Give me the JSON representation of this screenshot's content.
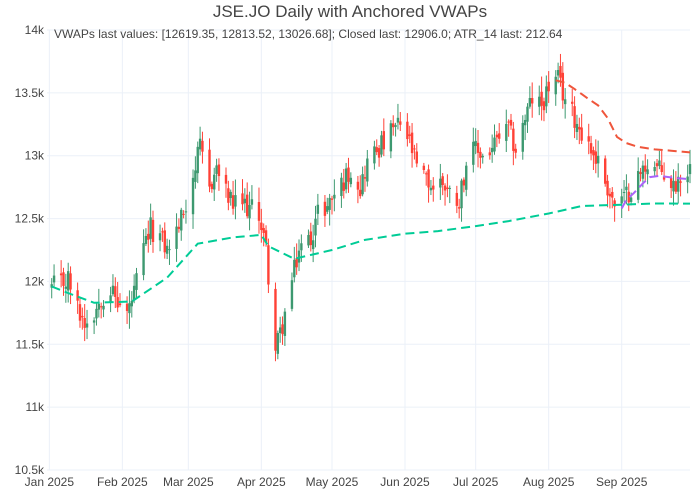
{
  "chart_data": {
    "type": "candlestick",
    "title": "JSE.JO Daily with Anchored VWAPs",
    "annotation": "VWAPs last values: [12619.35, 12813.52, 13026.68]; Closed last: 12906.0; ATR_14 last: 212.64",
    "xlabel": "",
    "ylabel": "",
    "x_range": [
      "2024-12-31",
      "2025-09-30"
    ],
    "ylim": [
      10500,
      14000
    ],
    "x_ticks": [
      {
        "date": "2025-01-01",
        "label": "Jan 2025"
      },
      {
        "date": "2025-02-01",
        "label": "Feb 2025"
      },
      {
        "date": "2025-03-01",
        "label": "Mar 2025"
      },
      {
        "date": "2025-04-01",
        "label": "Apr 2025"
      },
      {
        "date": "2025-05-01",
        "label": "May 2025"
      },
      {
        "date": "2025-06-01",
        "label": "Jun 2025"
      },
      {
        "date": "2025-07-01",
        "label": "Jul 2025"
      },
      {
        "date": "2025-08-01",
        "label": "Aug 2025"
      },
      {
        "date": "2025-09-01",
        "label": "Sep 2025"
      }
    ],
    "y_ticks": [
      {
        "value": 10500,
        "label": "10.5k"
      },
      {
        "value": 11000,
        "label": "11k"
      },
      {
        "value": 11500,
        "label": "11.5k"
      },
      {
        "value": 12000,
        "label": "12k"
      },
      {
        "value": 12500,
        "label": "12.5k"
      },
      {
        "value": 13000,
        "label": "13k"
      },
      {
        "value": 13500,
        "label": "13.5k"
      },
      {
        "value": 14000,
        "label": "14k"
      }
    ],
    "grid": true,
    "legend": "none",
    "colors": {
      "up": "#3d9970",
      "down": "#ff4136",
      "vwap1": "#00cc96",
      "vwap2": "#ef553b",
      "vwap3": "#ab63fa",
      "grid": "#ebf0f8"
    },
    "close_points": [
      [
        "2025-01-02",
        11950
      ],
      [
        "2025-01-06",
        11980
      ],
      [
        "2025-01-09",
        12020
      ],
      [
        "2025-01-13",
        11780
      ],
      [
        "2025-01-16",
        11680
      ],
      [
        "2025-01-20",
        11760
      ],
      [
        "2025-01-23",
        11880
      ],
      [
        "2025-01-27",
        11940
      ],
      [
        "2025-01-30",
        11830
      ],
      [
        "2025-02-03",
        11740
      ],
      [
        "2025-02-06",
        11900
      ],
      [
        "2025-02-10",
        12250
      ],
      [
        "2025-02-13",
        12420
      ],
      [
        "2025-02-17",
        12350
      ],
      [
        "2025-02-20",
        12250
      ],
      [
        "2025-02-24",
        12400
      ],
      [
        "2025-02-27",
        12550
      ],
      [
        "2025-03-03",
        12850
      ],
      [
        "2025-03-06",
        13050
      ],
      [
        "2025-03-10",
        12750
      ],
      [
        "2025-03-13",
        12900
      ],
      [
        "2025-03-17",
        12700
      ],
      [
        "2025-03-20",
        12600
      ],
      [
        "2025-03-24",
        12620
      ],
      [
        "2025-03-27",
        12580
      ],
      [
        "2025-03-31",
        12550
      ],
      [
        "2025-04-03",
        12250
      ],
      [
        "2025-04-07",
        11450
      ],
      [
        "2025-04-10",
        11650
      ],
      [
        "2025-04-14",
        12000
      ],
      [
        "2025-04-17",
        12250
      ],
      [
        "2025-04-22",
        12350
      ],
      [
        "2025-04-25",
        12550
      ],
      [
        "2025-04-29",
        12600
      ],
      [
        "2025-05-02",
        12700
      ],
      [
        "2025-05-06",
        12800
      ],
      [
        "2025-05-09",
        12900
      ],
      [
        "2025-05-13",
        12750
      ],
      [
        "2025-05-16",
        12950
      ],
      [
        "2025-05-20",
        13050
      ],
      [
        "2025-05-23",
        13100
      ],
      [
        "2025-05-27",
        13200
      ],
      [
        "2025-05-30",
        13250
      ],
      [
        "2025-06-03",
        13100
      ],
      [
        "2025-06-06",
        12900
      ],
      [
        "2025-06-10",
        12800
      ],
      [
        "2025-06-13",
        12750
      ],
      [
        "2025-06-17",
        12800
      ],
      [
        "2025-06-20",
        12700
      ],
      [
        "2025-06-24",
        12650
      ],
      [
        "2025-06-27",
        12950
      ],
      [
        "2025-07-01",
        13050
      ],
      [
        "2025-07-04",
        13000
      ],
      [
        "2025-07-08",
        13050
      ],
      [
        "2025-07-11",
        13150
      ],
      [
        "2025-07-15",
        13200
      ],
      [
        "2025-07-18",
        13050
      ],
      [
        "2025-07-22",
        13300
      ],
      [
        "2025-07-25",
        13450
      ],
      [
        "2025-07-29",
        13400
      ],
      [
        "2025-08-01",
        13550
      ],
      [
        "2025-08-05",
        13600
      ],
      [
        "2025-08-08",
        13450
      ],
      [
        "2025-08-12",
        13300
      ],
      [
        "2025-08-15",
        13200
      ],
      [
        "2025-08-19",
        13050
      ],
      [
        "2025-08-22",
        12950
      ],
      [
        "2025-08-26",
        12750
      ],
      [
        "2025-08-29",
        12600
      ],
      [
        "2025-09-02",
        12650
      ],
      [
        "2025-09-05",
        12750
      ],
      [
        "2025-09-09",
        12850
      ],
      [
        "2025-09-12",
        12950
      ],
      [
        "2025-09-16",
        12900
      ],
      [
        "2025-09-19",
        12850
      ],
      [
        "2025-09-23",
        12750
      ],
      [
        "2025-09-26",
        12850
      ],
      [
        "2025-09-30",
        12906
      ]
    ],
    "series": [
      {
        "type": "line",
        "style": "dashed",
        "color": "#00cc96",
        "x": [
          "2025-01-02",
          "2025-01-10",
          "2025-01-20",
          "2025-02-05",
          "2025-02-20",
          "2025-03-05",
          "2025-03-20",
          "2025-04-01",
          "2025-04-04",
          "2025-04-15",
          "2025-05-01",
          "2025-05-15",
          "2025-06-01",
          "2025-06-15",
          "2025-07-01",
          "2025-07-15",
          "2025-08-01",
          "2025-08-15",
          "2025-09-01",
          "2025-09-15",
          "2025-09-30"
        ],
        "y": [
          11960,
          11900,
          11830,
          11840,
          12030,
          12300,
          12350,
          12370,
          12280,
          12180,
          12250,
          12330,
          12380,
          12400,
          12440,
          12480,
          12540,
          12600,
          12610,
          12620,
          12619.35
        ]
      },
      {
        "type": "line",
        "style": "dashed",
        "color": "#ef553b",
        "x": [
          "2025-08-04",
          "2025-08-08",
          "2025-08-12",
          "2025-08-15",
          "2025-08-18",
          "2025-08-22",
          "2025-08-26",
          "2025-08-30",
          "2025-09-03",
          "2025-09-08",
          "2025-09-15",
          "2025-09-22",
          "2025-09-30"
        ],
        "y": [
          13600,
          13580,
          13530,
          13490,
          13450,
          13400,
          13300,
          13150,
          13100,
          13070,
          13050,
          13040,
          13026.68
        ]
      },
      {
        "type": "line",
        "style": "dashed",
        "color": "#ab63fa",
        "x": [
          "2025-09-01",
          "2025-09-03",
          "2025-09-06",
          "2025-09-10",
          "2025-09-13",
          "2025-09-17",
          "2025-09-21",
          "2025-09-25",
          "2025-09-30"
        ],
        "y": [
          12580,
          12650,
          12700,
          12780,
          12830,
          12840,
          12830,
          12820,
          12813.52
        ]
      }
    ]
  }
}
